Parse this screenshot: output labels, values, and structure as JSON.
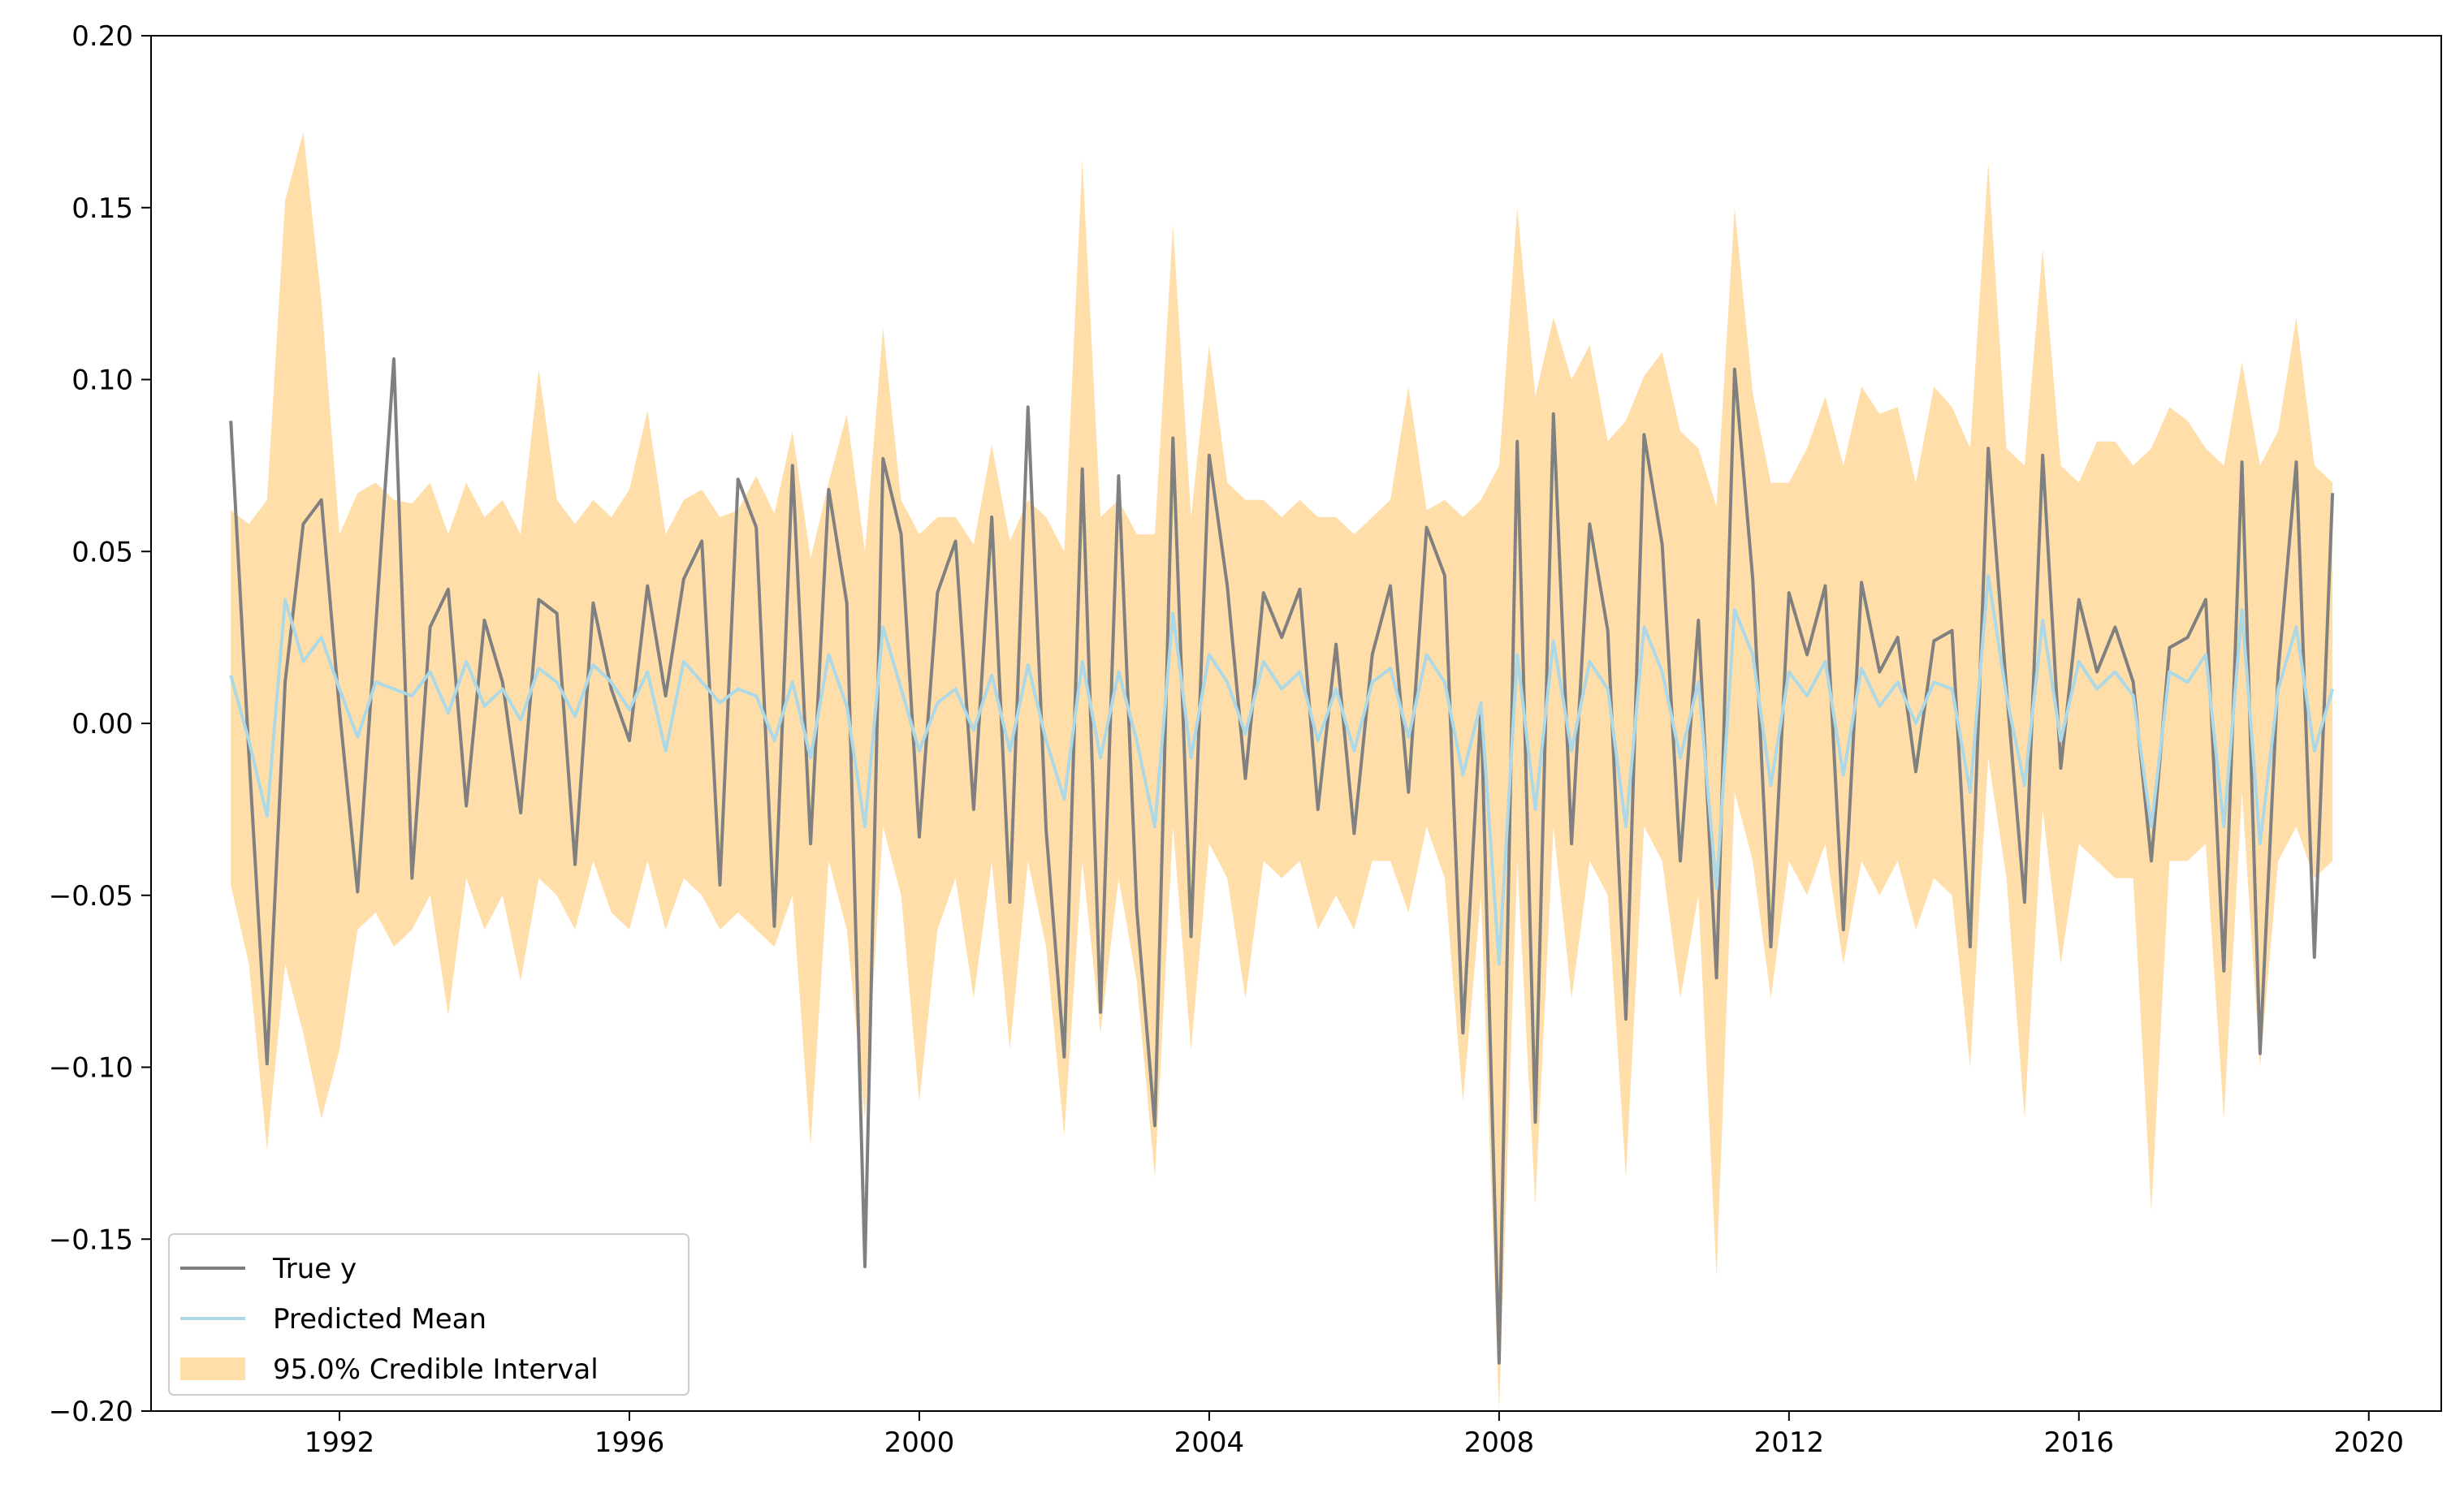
{
  "chart_data": {
    "type": "line",
    "title": "",
    "xlabel": "",
    "ylabel": "",
    "xlim": [
      1989.4,
      2021.0
    ],
    "ylim": [
      -0.2,
      0.2
    ],
    "x_ticks": [
      {
        "value": 1992,
        "label": "1992"
      },
      {
        "value": 1996,
        "label": "1996"
      },
      {
        "value": 2000,
        "label": "2000"
      },
      {
        "value": 2004,
        "label": "2004"
      },
      {
        "value": 2008,
        "label": "2008"
      },
      {
        "value": 2012,
        "label": "2012"
      },
      {
        "value": 2016,
        "label": "2016"
      },
      {
        "value": 2020,
        "label": "2020"
      }
    ],
    "y_ticks": [
      {
        "value": 0.2,
        "label": "0.20"
      },
      {
        "value": 0.15,
        "label": "0.15"
      },
      {
        "value": 0.1,
        "label": "0.10"
      },
      {
        "value": 0.05,
        "label": "0.05"
      },
      {
        "value": 0.0,
        "label": "0.00"
      },
      {
        "value": -0.05,
        "label": "−0.05"
      },
      {
        "value": -0.1,
        "label": "−0.10"
      },
      {
        "value": -0.15,
        "label": "−0.15"
      },
      {
        "value": -0.2,
        "label": "−0.20"
      }
    ],
    "grid": false,
    "legend_position": "lower-left",
    "series": [
      {
        "name": "True y",
        "kind": "line",
        "color": "#808080",
        "x": [
          1990.5,
          1990.75,
          1991.0,
          1991.25,
          1991.5,
          1991.75,
          1992.0,
          1992.25,
          1992.5,
          1992.75,
          1993.0,
          1993.25,
          1993.5,
          1993.75,
          1994.0,
          1994.25,
          1994.5,
          1994.75,
          1995.0,
          1995.25,
          1995.5,
          1995.75,
          1996.0,
          1996.25,
          1996.5,
          1996.75,
          1997.0,
          1997.25,
          1997.5,
          1997.75,
          1998.0,
          1998.25,
          1998.5,
          1998.75,
          1999.0,
          1999.25,
          1999.5,
          1999.75,
          2000.0,
          2000.25,
          2000.5,
          2000.75,
          2001.0,
          2001.25,
          2001.5,
          2001.75,
          2002.0,
          2002.25,
          2002.5,
          2002.75,
          2003.0,
          2003.25,
          2003.5,
          2003.75,
          2004.0,
          2004.25,
          2004.5,
          2004.75,
          2005.0,
          2005.25,
          2005.5,
          2005.75,
          2006.0,
          2006.25,
          2006.5,
          2006.75,
          2007.0,
          2007.25,
          2007.5,
          2007.75,
          2008.0,
          2008.25,
          2008.5,
          2008.75,
          2009.0,
          2009.25,
          2009.5,
          2009.75,
          2010.0,
          2010.25,
          2010.5,
          2010.75,
          2011.0,
          2011.25,
          2011.5,
          2011.75,
          2012.0,
          2012.25,
          2012.5,
          2012.75,
          2013.0,
          2013.25,
          2013.5,
          2013.75,
          2014.0,
          2014.25,
          2014.5,
          2014.75,
          2015.0,
          2015.25,
          2015.5,
          2015.75,
          2016.0,
          2016.25,
          2016.5,
          2016.75,
          2017.0,
          2017.25,
          2017.5,
          2017.75,
          2018.0,
          2018.25,
          2018.5,
          2018.75,
          2019.0,
          2019.25,
          2019.5
        ],
        "y": [
          0.088,
          -0.009,
          -0.099,
          0.012,
          0.058,
          0.065,
          0.004,
          -0.049,
          0.028,
          0.106,
          -0.045,
          0.028,
          0.039,
          -0.024,
          0.03,
          0.012,
          -0.026,
          0.036,
          0.032,
          -0.041,
          0.035,
          0.01,
          -0.005,
          0.04,
          0.008,
          0.042,
          0.053,
          -0.047,
          0.071,
          0.057,
          -0.059,
          0.075,
          -0.035,
          0.068,
          0.035,
          -0.158,
          0.077,
          0.055,
          -0.033,
          0.038,
          0.053,
          -0.025,
          0.06,
          -0.052,
          0.092,
          -0.031,
          -0.097,
          0.074,
          -0.084,
          0.072,
          -0.054,
          -0.117,
          0.083,
          -0.062,
          0.078,
          0.04,
          -0.016,
          0.038,
          0.025,
          0.039,
          -0.025,
          0.023,
          -0.032,
          0.02,
          0.04,
          -0.02,
          0.057,
          0.043,
          -0.09,
          0.005,
          -0.186,
          0.082,
          -0.116,
          0.09,
          -0.035,
          0.058,
          0.027,
          -0.086,
          0.084,
          0.052,
          -0.04,
          0.03,
          -0.074,
          0.103,
          0.042,
          -0.065,
          0.038,
          0.02,
          0.04,
          -0.06,
          0.041,
          0.015,
          0.025,
          -0.014,
          0.024,
          0.027,
          -0.065,
          0.08,
          0.01,
          -0.052,
          0.078,
          -0.013,
          0.036,
          0.015,
          0.028,
          0.012,
          -0.04,
          0.022,
          0.025,
          0.036,
          -0.072,
          0.076,
          -0.096,
          0.015,
          0.076,
          -0.068,
          0.067
        ]
      },
      {
        "name": "Predicted Mean",
        "kind": "line",
        "color": "#add8e6",
        "x": [
          1990.5,
          1990.75,
          1991.0,
          1991.25,
          1991.5,
          1991.75,
          1992.0,
          1992.25,
          1992.5,
          1992.75,
          1993.0,
          1993.25,
          1993.5,
          1993.75,
          1994.0,
          1994.25,
          1994.5,
          1994.75,
          1995.0,
          1995.25,
          1995.5,
          1995.75,
          1996.0,
          1996.25,
          1996.5,
          1996.75,
          1997.0,
          1997.25,
          1997.5,
          1997.75,
          1998.0,
          1998.25,
          1998.5,
          1998.75,
          1999.0,
          1999.25,
          1999.5,
          1999.75,
          2000.0,
          2000.25,
          2000.5,
          2000.75,
          2001.0,
          2001.25,
          2001.5,
          2001.75,
          2002.0,
          2002.25,
          2002.5,
          2002.75,
          2003.0,
          2003.25,
          2003.5,
          2003.75,
          2004.0,
          2004.25,
          2004.5,
          2004.75,
          2005.0,
          2005.25,
          2005.5,
          2005.75,
          2006.0,
          2006.25,
          2006.5,
          2006.75,
          2007.0,
          2007.25,
          2007.5,
          2007.75,
          2008.0,
          2008.25,
          2008.5,
          2008.75,
          2009.0,
          2009.25,
          2009.5,
          2009.75,
          2010.0,
          2010.25,
          2010.5,
          2010.75,
          2011.0,
          2011.25,
          2011.5,
          2011.75,
          2012.0,
          2012.25,
          2012.5,
          2012.75,
          2013.0,
          2013.25,
          2013.5,
          2013.75,
          2014.0,
          2014.25,
          2014.5,
          2014.75,
          2015.0,
          2015.25,
          2015.5,
          2015.75,
          2016.0,
          2016.25,
          2016.5,
          2016.75,
          2017.0,
          2017.25,
          2017.5,
          2017.75,
          2018.0,
          2018.25,
          2018.5,
          2018.75,
          2019.0,
          2019.25,
          2019.5
        ],
        "y": [
          0.014,
          -0.005,
          -0.027,
          0.036,
          0.018,
          0.025,
          0.01,
          -0.004,
          0.012,
          0.01,
          0.008,
          0.015,
          0.003,
          0.018,
          0.005,
          0.01,
          0.001,
          0.016,
          0.012,
          0.002,
          0.017,
          0.012,
          0.004,
          0.015,
          -0.008,
          0.018,
          0.012,
          0.006,
          0.01,
          0.008,
          -0.005,
          0.012,
          -0.01,
          0.02,
          0.005,
          -0.03,
          0.028,
          0.01,
          -0.008,
          0.006,
          0.01,
          -0.002,
          0.014,
          -0.008,
          0.017,
          -0.005,
          -0.022,
          0.018,
          -0.01,
          0.015,
          -0.005,
          -0.03,
          0.032,
          -0.01,
          0.02,
          0.012,
          -0.003,
          0.018,
          0.01,
          0.015,
          -0.005,
          0.01,
          -0.008,
          0.012,
          0.016,
          -0.004,
          0.02,
          0.012,
          -0.015,
          0.006,
          -0.07,
          0.02,
          -0.025,
          0.024,
          -0.008,
          0.018,
          0.01,
          -0.03,
          0.028,
          0.015,
          -0.01,
          0.012,
          -0.048,
          0.033,
          0.02,
          -0.018,
          0.015,
          0.008,
          0.018,
          -0.015,
          0.016,
          0.005,
          0.012,
          0.0,
          0.012,
          0.01,
          -0.02,
          0.043,
          0.008,
          -0.018,
          0.03,
          -0.005,
          0.018,
          0.01,
          0.015,
          0.008,
          -0.03,
          0.015,
          0.012,
          0.02,
          -0.03,
          0.033,
          -0.035,
          0.01,
          0.028,
          -0.008,
          0.01
        ]
      },
      {
        "name": "95.0% Credible Interval",
        "kind": "band",
        "color": "#ffdeaa",
        "x": [
          1990.5,
          1990.75,
          1991.0,
          1991.25,
          1991.5,
          1991.75,
          1992.0,
          1992.25,
          1992.5,
          1992.75,
          1993.0,
          1993.25,
          1993.5,
          1993.75,
          1994.0,
          1994.25,
          1994.5,
          1994.75,
          1995.0,
          1995.25,
          1995.5,
          1995.75,
          1996.0,
          1996.25,
          1996.5,
          1996.75,
          1997.0,
          1997.25,
          1997.5,
          1997.75,
          1998.0,
          1998.25,
          1998.5,
          1998.75,
          1999.0,
          1999.25,
          1999.5,
          1999.75,
          2000.0,
          2000.25,
          2000.5,
          2000.75,
          2001.0,
          2001.25,
          2001.5,
          2001.75,
          2002.0,
          2002.25,
          2002.5,
          2002.75,
          2003.0,
          2003.25,
          2003.5,
          2003.75,
          2004.0,
          2004.25,
          2004.5,
          2004.75,
          2005.0,
          2005.25,
          2005.5,
          2005.75,
          2006.0,
          2006.25,
          2006.5,
          2006.75,
          2007.0,
          2007.25,
          2007.5,
          2007.75,
          2008.0,
          2008.25,
          2008.5,
          2008.75,
          2009.0,
          2009.25,
          2009.5,
          2009.75,
          2010.0,
          2010.25,
          2010.5,
          2010.75,
          2011.0,
          2011.25,
          2011.5,
          2011.75,
          2012.0,
          2012.25,
          2012.5,
          2012.75,
          2013.0,
          2013.25,
          2013.5,
          2013.75,
          2014.0,
          2014.25,
          2014.5,
          2014.75,
          2015.0,
          2015.25,
          2015.5,
          2015.75,
          2016.0,
          2016.25,
          2016.5,
          2016.75,
          2017.0,
          2017.25,
          2017.5,
          2017.75,
          2018.0,
          2018.25,
          2018.5,
          2018.75,
          2019.0,
          2019.25,
          2019.5
        ],
        "lower": [
          -0.047,
          -0.07,
          -0.124,
          -0.07,
          -0.09,
          -0.115,
          -0.095,
          -0.06,
          -0.055,
          -0.065,
          -0.06,
          -0.05,
          -0.085,
          -0.045,
          -0.06,
          -0.05,
          -0.075,
          -0.045,
          -0.05,
          -0.06,
          -0.04,
          -0.055,
          -0.06,
          -0.04,
          -0.06,
          -0.045,
          -0.05,
          -0.06,
          -0.055,
          -0.06,
          -0.065,
          -0.05,
          -0.123,
          -0.04,
          -0.06,
          -0.115,
          -0.03,
          -0.05,
          -0.11,
          -0.06,
          -0.045,
          -0.08,
          -0.04,
          -0.095,
          -0.04,
          -0.065,
          -0.12,
          -0.04,
          -0.09,
          -0.045,
          -0.075,
          -0.132,
          -0.03,
          -0.095,
          -0.035,
          -0.045,
          -0.08,
          -0.04,
          -0.045,
          -0.04,
          -0.06,
          -0.05,
          -0.06,
          -0.04,
          -0.04,
          -0.055,
          -0.03,
          -0.045,
          -0.11,
          -0.05,
          -0.2,
          -0.04,
          -0.14,
          -0.03,
          -0.08,
          -0.04,
          -0.05,
          -0.132,
          -0.03,
          -0.04,
          -0.08,
          -0.05,
          -0.161,
          -0.02,
          -0.04,
          -0.08,
          -0.04,
          -0.05,
          -0.035,
          -0.07,
          -0.04,
          -0.05,
          -0.04,
          -0.06,
          -0.045,
          -0.05,
          -0.1,
          -0.01,
          -0.045,
          -0.115,
          -0.025,
          -0.07,
          -0.035,
          -0.04,
          -0.045,
          -0.045,
          -0.142,
          -0.04,
          -0.04,
          -0.035,
          -0.115,
          -0.02,
          -0.1,
          -0.04,
          -0.03,
          -0.045,
          -0.04
        ],
        "upper": [
          0.062,
          0.058,
          0.065,
          0.152,
          0.172,
          0.123,
          0.055,
          0.067,
          0.07,
          0.065,
          0.064,
          0.07,
          0.055,
          0.07,
          0.06,
          0.065,
          0.055,
          0.103,
          0.065,
          0.058,
          0.065,
          0.06,
          0.068,
          0.091,
          0.055,
          0.065,
          0.068,
          0.06,
          0.062,
          0.072,
          0.061,
          0.085,
          0.048,
          0.07,
          0.09,
          0.05,
          0.115,
          0.065,
          0.055,
          0.06,
          0.06,
          0.052,
          0.081,
          0.053,
          0.065,
          0.06,
          0.05,
          0.164,
          0.06,
          0.065,
          0.055,
          0.055,
          0.145,
          0.06,
          0.11,
          0.07,
          0.065,
          0.065,
          0.06,
          0.065,
          0.06,
          0.06,
          0.055,
          0.06,
          0.065,
          0.098,
          0.062,
          0.065,
          0.06,
          0.065,
          0.075,
          0.15,
          0.095,
          0.118,
          0.1,
          0.11,
          0.082,
          0.088,
          0.101,
          0.108,
          0.085,
          0.08,
          0.063,
          0.15,
          0.096,
          0.07,
          0.07,
          0.08,
          0.095,
          0.075,
          0.098,
          0.09,
          0.092,
          0.07,
          0.098,
          0.092,
          0.08,
          0.163,
          0.08,
          0.075,
          0.138,
          0.075,
          0.07,
          0.082,
          0.082,
          0.075,
          0.08,
          0.092,
          0.088,
          0.08,
          0.075,
          0.105,
          0.075,
          0.085,
          0.118,
          0.075,
          0.07
        ]
      }
    ]
  }
}
